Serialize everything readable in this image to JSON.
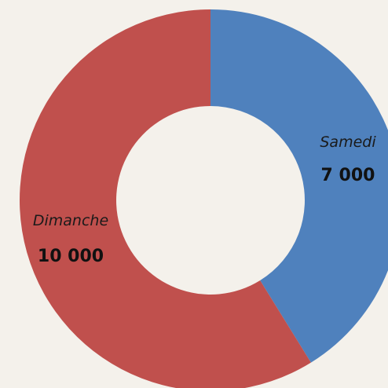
{
  "chart_data": {
    "type": "donut",
    "categories": [
      "Samedi",
      "Dimanche"
    ],
    "values": [
      7000,
      10000
    ],
    "value_labels": [
      "7 000",
      "10 000"
    ],
    "colors": [
      "#4f81bd",
      "#c0504d"
    ]
  }
}
